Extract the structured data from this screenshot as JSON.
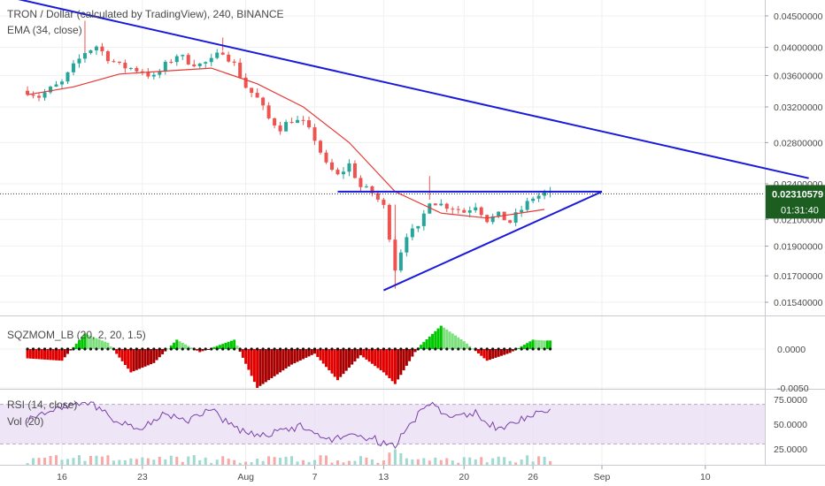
{
  "header": {
    "title": "TRON / Dollar (calculated by TradingView), 240, BINANCE",
    "ema_label": "EMA (34, close)"
  },
  "price_axis": {
    "ticks": [
      "0.04500000",
      "0.04000000",
      "0.03600000",
      "0.03200000",
      "0.02800000",
      "0.02400000",
      "0.02100000",
      "0.01900000",
      "0.01700000",
      "0.01540000"
    ]
  },
  "price_badge": {
    "value": "0.02310579",
    "countdown": "01:31:40",
    "color": "#1b5e20"
  },
  "squeeze": {
    "label": "SQZMOM_LB (20, 2, 20, 1.5)",
    "ticks": [
      "0.0000",
      "-0.0050"
    ]
  },
  "rsi": {
    "label": "RSI (14, close)",
    "vol_label": "Vol (20)",
    "ticks": [
      "75.0000",
      "50.0000",
      "25.0000"
    ]
  },
  "time_axis": {
    "labels": [
      "16",
      "23",
      "Aug",
      "7",
      "13",
      "20",
      "26",
      "Sep",
      "10"
    ]
  },
  "colors": {
    "up": "#26a69a",
    "down": "#ef5350",
    "ema": "#e53935",
    "trendline": "#1a1adb",
    "rsi_line": "#7b3fa8",
    "rsi_band": "#e7dcf3",
    "sqz_pos": "#00c800",
    "sqz_neg": "#e00000"
  },
  "chart_data": {
    "type": "candlestick",
    "timeframe": "240",
    "x_labels": [
      "16",
      "23",
      "Aug",
      "7",
      "13",
      "20",
      "26",
      "Sep",
      "10"
    ],
    "close_path": [
      [
        "Jul 13",
        0.034
      ],
      [
        "Jul 14",
        0.0333
      ],
      [
        "Jul 15",
        0.0342
      ],
      [
        "Jul 16",
        0.035
      ],
      [
        "Jul 17",
        0.0372
      ],
      [
        "Jul 18",
        0.0393
      ],
      [
        "Jul 19",
        0.0402
      ],
      [
        "Jul 20",
        0.0385
      ],
      [
        "Jul 21",
        0.0373
      ],
      [
        "Jul 22",
        0.037
      ],
      [
        "Jul 23",
        0.0366
      ],
      [
        "Jul 24",
        0.0357
      ],
      [
        "Jul 25",
        0.0374
      ],
      [
        "Jul 26",
        0.0389
      ],
      [
        "Jul 27",
        0.038
      ],
      [
        "Jul 28",
        0.0375
      ],
      [
        "Jul 29",
        0.038
      ],
      [
        "Jul 30",
        0.0395
      ],
      [
        "Jul 31",
        0.0375
      ],
      [
        "Aug 1",
        0.0345
      ],
      [
        "Aug 2",
        0.033
      ],
      [
        "Aug 3",
        0.0306
      ],
      [
        "Aug 4",
        0.0296
      ],
      [
        "Aug 5",
        0.0305
      ],
      [
        "Aug 6",
        0.0301
      ],
      [
        "Aug 7",
        0.0284
      ],
      [
        "Aug 8",
        0.0257
      ],
      [
        "Aug 9",
        0.0247
      ],
      [
        "Aug 10",
        0.0258
      ],
      [
        "Aug 11",
        0.0237
      ],
      [
        "Aug 12",
        0.0232
      ],
      [
        "Aug 13",
        0.022
      ],
      [
        "Aug 14",
        0.0175
      ],
      [
        "Aug 15",
        0.0199
      ],
      [
        "Aug 16",
        0.0202
      ],
      [
        "Aug 17",
        0.0226
      ],
      [
        "Aug 18",
        0.0222
      ],
      [
        "Aug 19",
        0.022
      ],
      [
        "Aug 20",
        0.0216
      ],
      [
        "Aug 21",
        0.0222
      ],
      [
        "Aug 22",
        0.021
      ],
      [
        "Aug 23",
        0.0213
      ],
      [
        "Aug 24",
        0.0208
      ],
      [
        "Aug 25",
        0.0218
      ],
      [
        "Aug 26",
        0.0228
      ],
      [
        "Aug 27",
        0.0231
      ]
    ],
    "ema": [
      [
        "Jul 13",
        0.0335
      ],
      [
        "Jul 17",
        0.0345
      ],
      [
        "Jul 21",
        0.0362
      ],
      [
        "Jul 25",
        0.0366
      ],
      [
        "Jul 29",
        0.037
      ],
      [
        "Aug 2",
        0.0349
      ],
      [
        "Aug 6",
        0.032
      ],
      [
        "Aug 10",
        0.028
      ],
      [
        "Aug 14",
        0.0233
      ],
      [
        "Aug 18",
        0.0215
      ],
      [
        "Aug 22",
        0.0211
      ],
      [
        "Aug 27",
        0.0218
      ]
    ],
    "trendlines": [
      {
        "from": [
          "Jul 12",
          0.048
        ],
        "to": [
          "Sep 19",
          0.0245
        ]
      },
      {
        "from": [
          "Aug 9",
          0.0233
        ],
        "to": [
          "Sep 1",
          0.0233
        ]
      },
      {
        "from": [
          "Aug 13",
          0.0161
        ],
        "to": [
          "Sep 1",
          0.0233
        ]
      }
    ],
    "last_price": 0.02310579,
    "squeeze_momentum": [
      [
        "Jul 13",
        -0.0012
      ],
      [
        "Jul 16",
        -0.0015
      ],
      [
        "Jul 18",
        0.002
      ],
      [
        "Jul 20",
        0.0008
      ],
      [
        "Jul 22",
        -0.003
      ],
      [
        "Jul 24",
        -0.0018
      ],
      [
        "Jul 26",
        0.0012
      ],
      [
        "Jul 28",
        -0.0004
      ],
      [
        "Jul 31",
        0.0012
      ],
      [
        "Aug 2",
        -0.005
      ],
      [
        "Aug 5",
        -0.002
      ],
      [
        "Aug 7",
        -0.0006
      ],
      [
        "Aug 9",
        -0.004
      ],
      [
        "Aug 11",
        -0.0008
      ],
      [
        "Aug 13",
        -0.003
      ],
      [
        "Aug 14",
        -0.0045
      ],
      [
        "Aug 16",
        0.0002
      ],
      [
        "Aug 18",
        0.003
      ],
      [
        "Aug 20",
        0.001
      ],
      [
        "Aug 22",
        -0.0015
      ],
      [
        "Aug 24",
        -0.0005
      ],
      [
        "Aug 26",
        0.0012
      ],
      [
        "Aug 27",
        0.0011
      ]
    ],
    "rsi": [
      [
        "Jul 13",
        55
      ],
      [
        "Jul 15",
        64
      ],
      [
        "Jul 17",
        70
      ],
      [
        "Jul 19",
        68
      ],
      [
        "Jul 21",
        50
      ],
      [
        "Jul 23",
        48
      ],
      [
        "Jul 25",
        60
      ],
      [
        "Jul 27",
        52
      ],
      [
        "Jul 29",
        66
      ],
      [
        "Jul 31",
        45
      ],
      [
        "Aug 2",
        38
      ],
      [
        "Aug 4",
        42
      ],
      [
        "Aug 6",
        48
      ],
      [
        "Aug 8",
        34
      ],
      [
        "Aug 10",
        40
      ],
      [
        "Aug 12",
        36
      ],
      [
        "Aug 13",
        30
      ],
      [
        "Aug 14",
        26
      ],
      [
        "Aug 15",
        48
      ],
      [
        "Aug 17",
        70
      ],
      [
        "Aug 19",
        58
      ],
      [
        "Aug 21",
        62
      ],
      [
        "Aug 23",
        44
      ],
      [
        "Aug 25",
        56
      ],
      [
        "Aug 27",
        64
      ]
    ],
    "rsi_band": [
      30,
      70
    ]
  }
}
